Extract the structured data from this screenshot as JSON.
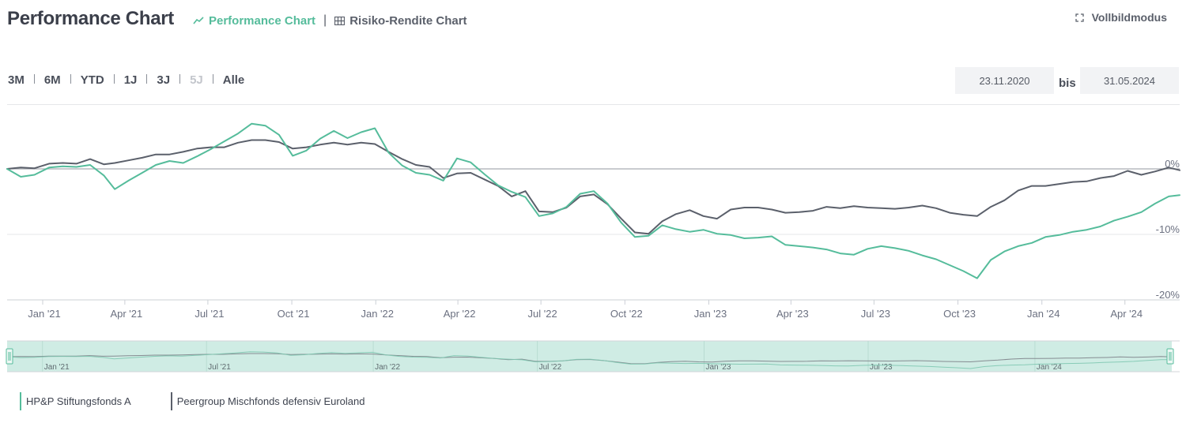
{
  "header": {
    "title": "Performance Chart",
    "tabs": [
      {
        "label": "Performance Chart",
        "icon": "line-chart-icon",
        "active": true
      },
      {
        "label": "Risiko-Rendite Chart",
        "icon": "grid-icon",
        "active": false
      }
    ],
    "fullscreen_label": "Vollbildmodus"
  },
  "ranges": [
    {
      "label": "3M",
      "disabled": false
    },
    {
      "label": "6M",
      "disabled": false
    },
    {
      "label": "YTD",
      "disabled": false
    },
    {
      "label": "1J",
      "disabled": false
    },
    {
      "label": "3J",
      "disabled": false
    },
    {
      "label": "5J",
      "disabled": true
    },
    {
      "label": "Alle",
      "disabled": false
    }
  ],
  "date_range": {
    "from": "23.11.2020",
    "separator": "bis",
    "to": "31.05.2024"
  },
  "colors": {
    "fund": "#55bc9b",
    "peer": "#5b606b",
    "navigator_bg": "#cfece4",
    "grid": "#e6e7ea"
  },
  "chart_data": {
    "type": "line",
    "x_start": "2020-11-23",
    "x_end": "2024-05-31",
    "x_ticks": [
      {
        "date": "2021-01-01",
        "label": "Jan '21"
      },
      {
        "date": "2021-04-01",
        "label": "Apr '21"
      },
      {
        "date": "2021-07-01",
        "label": "Jul '21"
      },
      {
        "date": "2021-10-01",
        "label": "Oct '21"
      },
      {
        "date": "2022-01-01",
        "label": "Jan '22"
      },
      {
        "date": "2022-04-01",
        "label": "Apr '22"
      },
      {
        "date": "2022-07-01",
        "label": "Jul '22"
      },
      {
        "date": "2022-10-01",
        "label": "Oct '22"
      },
      {
        "date": "2023-01-01",
        "label": "Jan '23"
      },
      {
        "date": "2023-04-01",
        "label": "Apr '23"
      },
      {
        "date": "2023-07-01",
        "label": "Jul '23"
      },
      {
        "date": "2023-10-01",
        "label": "Oct '23"
      },
      {
        "date": "2024-01-01",
        "label": "Jan '24"
      },
      {
        "date": "2024-04-01",
        "label": "Apr '24"
      }
    ],
    "y_ticks": [
      {
        "value": 0,
        "label": "0%"
      },
      {
        "value": -10,
        "label": "-10%"
      },
      {
        "value": -20,
        "label": "-20%"
      }
    ],
    "ylim": [
      -20,
      10
    ],
    "y_unit": "%",
    "navigator_ticks": [
      {
        "date": "2021-01-01",
        "label": "Jan '21"
      },
      {
        "date": "2021-07-01",
        "label": "Jul '21"
      },
      {
        "date": "2022-01-01",
        "label": "Jan '22"
      },
      {
        "date": "2022-07-01",
        "label": "Jul '22"
      },
      {
        "date": "2023-01-01",
        "label": "Jan '23"
      },
      {
        "date": "2023-07-01",
        "label": "Jul '23"
      },
      {
        "date": "2024-01-01",
        "label": "Jan '24"
      }
    ],
    "series": [
      {
        "name": "HP&P Stiftungsfonds A",
        "color": "#55bc9b",
        "points": [
          [
            "2020-11-23",
            0.0
          ],
          [
            "2020-12-08",
            -1.2
          ],
          [
            "2020-12-23",
            -0.9
          ],
          [
            "2021-01-08",
            0.2
          ],
          [
            "2021-01-23",
            0.4
          ],
          [
            "2021-02-07",
            0.3
          ],
          [
            "2021-02-22",
            0.6
          ],
          [
            "2021-03-09",
            -1.0
          ],
          [
            "2021-03-21",
            -3.1
          ],
          [
            "2021-04-05",
            -1.8
          ],
          [
            "2021-04-20",
            -0.6
          ],
          [
            "2021-05-05",
            0.6
          ],
          [
            "2021-05-20",
            1.2
          ],
          [
            "2021-06-04",
            0.9
          ],
          [
            "2021-06-19",
            1.9
          ],
          [
            "2021-07-04",
            3.0
          ],
          [
            "2021-07-19",
            4.2
          ],
          [
            "2021-08-03",
            5.4
          ],
          [
            "2021-08-18",
            6.9
          ],
          [
            "2021-09-02",
            6.6
          ],
          [
            "2021-09-17",
            5.2
          ],
          [
            "2021-10-02",
            2.0
          ],
          [
            "2021-10-17",
            2.8
          ],
          [
            "2021-11-01",
            4.6
          ],
          [
            "2021-11-16",
            5.8
          ],
          [
            "2021-12-01",
            4.7
          ],
          [
            "2021-12-16",
            5.6
          ],
          [
            "2021-12-31",
            6.2
          ],
          [
            "2022-01-15",
            2.5
          ],
          [
            "2022-01-30",
            0.5
          ],
          [
            "2022-02-14",
            -0.6
          ],
          [
            "2022-03-01",
            -0.9
          ],
          [
            "2022-03-16",
            -1.8
          ],
          [
            "2022-03-31",
            1.6
          ],
          [
            "2022-04-15",
            1.0
          ],
          [
            "2022-04-30",
            -0.8
          ],
          [
            "2022-05-15",
            -2.5
          ],
          [
            "2022-05-30",
            -3.5
          ],
          [
            "2022-06-14",
            -4.3
          ],
          [
            "2022-06-29",
            -7.2
          ],
          [
            "2022-07-14",
            -6.8
          ],
          [
            "2022-07-29",
            -5.8
          ],
          [
            "2022-08-13",
            -3.8
          ],
          [
            "2022-08-28",
            -3.4
          ],
          [
            "2022-09-12",
            -5.3
          ],
          [
            "2022-09-27",
            -8.2
          ],
          [
            "2022-10-12",
            -10.4
          ],
          [
            "2022-10-27",
            -10.2
          ],
          [
            "2022-11-11",
            -8.6
          ],
          [
            "2022-11-26",
            -9.2
          ],
          [
            "2022-12-11",
            -9.6
          ],
          [
            "2022-12-26",
            -9.3
          ],
          [
            "2023-01-10",
            -9.9
          ],
          [
            "2023-01-25",
            -10.1
          ],
          [
            "2023-02-09",
            -10.6
          ],
          [
            "2023-02-24",
            -10.5
          ],
          [
            "2023-03-11",
            -10.3
          ],
          [
            "2023-03-26",
            -11.6
          ],
          [
            "2023-04-10",
            -11.8
          ],
          [
            "2023-04-25",
            -12.0
          ],
          [
            "2023-05-10",
            -12.3
          ],
          [
            "2023-05-25",
            -12.9
          ],
          [
            "2023-06-09",
            -13.1
          ],
          [
            "2023-06-24",
            -12.2
          ],
          [
            "2023-07-09",
            -11.8
          ],
          [
            "2023-07-24",
            -12.1
          ],
          [
            "2023-08-08",
            -12.5
          ],
          [
            "2023-08-23",
            -13.2
          ],
          [
            "2023-09-07",
            -13.8
          ],
          [
            "2023-09-22",
            -14.7
          ],
          [
            "2023-10-07",
            -15.6
          ],
          [
            "2023-10-22",
            -16.7
          ],
          [
            "2023-11-06",
            -13.9
          ],
          [
            "2023-11-21",
            -12.6
          ],
          [
            "2023-12-06",
            -11.8
          ],
          [
            "2023-12-21",
            -11.3
          ],
          [
            "2024-01-05",
            -10.4
          ],
          [
            "2024-01-20",
            -10.1
          ],
          [
            "2024-02-04",
            -9.6
          ],
          [
            "2024-02-19",
            -9.3
          ],
          [
            "2024-03-05",
            -8.8
          ],
          [
            "2024-03-20",
            -7.9
          ],
          [
            "2024-04-04",
            -7.3
          ],
          [
            "2024-04-19",
            -6.6
          ],
          [
            "2024-05-04",
            -5.3
          ],
          [
            "2024-05-19",
            -4.2
          ],
          [
            "2024-05-31",
            -4.0
          ]
        ]
      },
      {
        "name": "Peergroup Mischfonds defensiv Euroland",
        "color": "#5b606b",
        "points": [
          [
            "2020-11-23",
            0.0
          ],
          [
            "2020-12-08",
            0.2
          ],
          [
            "2020-12-23",
            0.1
          ],
          [
            "2021-01-08",
            0.8
          ],
          [
            "2021-01-23",
            0.9
          ],
          [
            "2021-02-07",
            0.8
          ],
          [
            "2021-02-22",
            1.5
          ],
          [
            "2021-03-09",
            0.7
          ],
          [
            "2021-03-21",
            0.9
          ],
          [
            "2021-04-05",
            1.3
          ],
          [
            "2021-04-20",
            1.7
          ],
          [
            "2021-05-05",
            2.2
          ],
          [
            "2021-05-20",
            2.2
          ],
          [
            "2021-06-04",
            2.6
          ],
          [
            "2021-06-19",
            3.1
          ],
          [
            "2021-07-04",
            3.3
          ],
          [
            "2021-07-19",
            3.3
          ],
          [
            "2021-08-03",
            4.0
          ],
          [
            "2021-08-18",
            4.4
          ],
          [
            "2021-09-02",
            4.4
          ],
          [
            "2021-09-17",
            4.1
          ],
          [
            "2021-10-02",
            3.1
          ],
          [
            "2021-10-17",
            3.3
          ],
          [
            "2021-11-01",
            3.7
          ],
          [
            "2021-11-16",
            4.0
          ],
          [
            "2021-12-01",
            3.7
          ],
          [
            "2021-12-16",
            4.0
          ],
          [
            "2021-12-31",
            3.8
          ],
          [
            "2022-01-15",
            2.6
          ],
          [
            "2022-01-30",
            1.5
          ],
          [
            "2022-02-14",
            0.6
          ],
          [
            "2022-03-01",
            0.3
          ],
          [
            "2022-03-16",
            -1.4
          ],
          [
            "2022-03-31",
            -0.7
          ],
          [
            "2022-04-15",
            -0.6
          ],
          [
            "2022-04-30",
            -1.6
          ],
          [
            "2022-05-15",
            -2.6
          ],
          [
            "2022-05-30",
            -4.2
          ],
          [
            "2022-06-14",
            -3.4
          ],
          [
            "2022-06-29",
            -6.5
          ],
          [
            "2022-07-14",
            -6.6
          ],
          [
            "2022-07-29",
            -5.9
          ],
          [
            "2022-08-13",
            -4.2
          ],
          [
            "2022-08-28",
            -3.9
          ],
          [
            "2022-09-12",
            -5.4
          ],
          [
            "2022-09-27",
            -7.6
          ],
          [
            "2022-10-12",
            -9.7
          ],
          [
            "2022-10-27",
            -9.9
          ],
          [
            "2022-11-11",
            -8.0
          ],
          [
            "2022-11-26",
            -6.9
          ],
          [
            "2022-12-11",
            -6.3
          ],
          [
            "2022-12-26",
            -7.2
          ],
          [
            "2023-01-10",
            -7.6
          ],
          [
            "2023-01-25",
            -6.2
          ],
          [
            "2023-02-09",
            -5.9
          ],
          [
            "2023-02-24",
            -5.9
          ],
          [
            "2023-03-11",
            -6.2
          ],
          [
            "2023-03-26",
            -6.7
          ],
          [
            "2023-04-10",
            -6.6
          ],
          [
            "2023-04-25",
            -6.4
          ],
          [
            "2023-05-10",
            -5.8
          ],
          [
            "2023-05-25",
            -6.0
          ],
          [
            "2023-06-09",
            -5.7
          ],
          [
            "2023-06-24",
            -5.9
          ],
          [
            "2023-07-09",
            -6.0
          ],
          [
            "2023-07-24",
            -6.1
          ],
          [
            "2023-08-08",
            -5.9
          ],
          [
            "2023-08-23",
            -5.6
          ],
          [
            "2023-09-07",
            -6.0
          ],
          [
            "2023-09-22",
            -6.7
          ],
          [
            "2023-10-07",
            -7.0
          ],
          [
            "2023-10-22",
            -7.2
          ],
          [
            "2023-11-06",
            -5.8
          ],
          [
            "2023-11-21",
            -4.8
          ],
          [
            "2023-12-06",
            -3.3
          ],
          [
            "2023-12-21",
            -2.6
          ],
          [
            "2024-01-05",
            -2.6
          ],
          [
            "2024-01-20",
            -2.3
          ],
          [
            "2024-02-04",
            -2.0
          ],
          [
            "2024-02-19",
            -1.9
          ],
          [
            "2024-03-05",
            -1.4
          ],
          [
            "2024-03-20",
            -1.1
          ],
          [
            "2024-04-04",
            -0.3
          ],
          [
            "2024-04-19",
            -0.9
          ],
          [
            "2024-05-04",
            -0.4
          ],
          [
            "2024-05-19",
            0.2
          ],
          [
            "2024-05-31",
            -0.2
          ]
        ]
      }
    ],
    "legend": [
      "HP&P Stiftungsfonds A",
      "Peergroup Mischfonds defensiv Euroland"
    ],
    "legend_position": "bottom-left",
    "grid": true
  }
}
